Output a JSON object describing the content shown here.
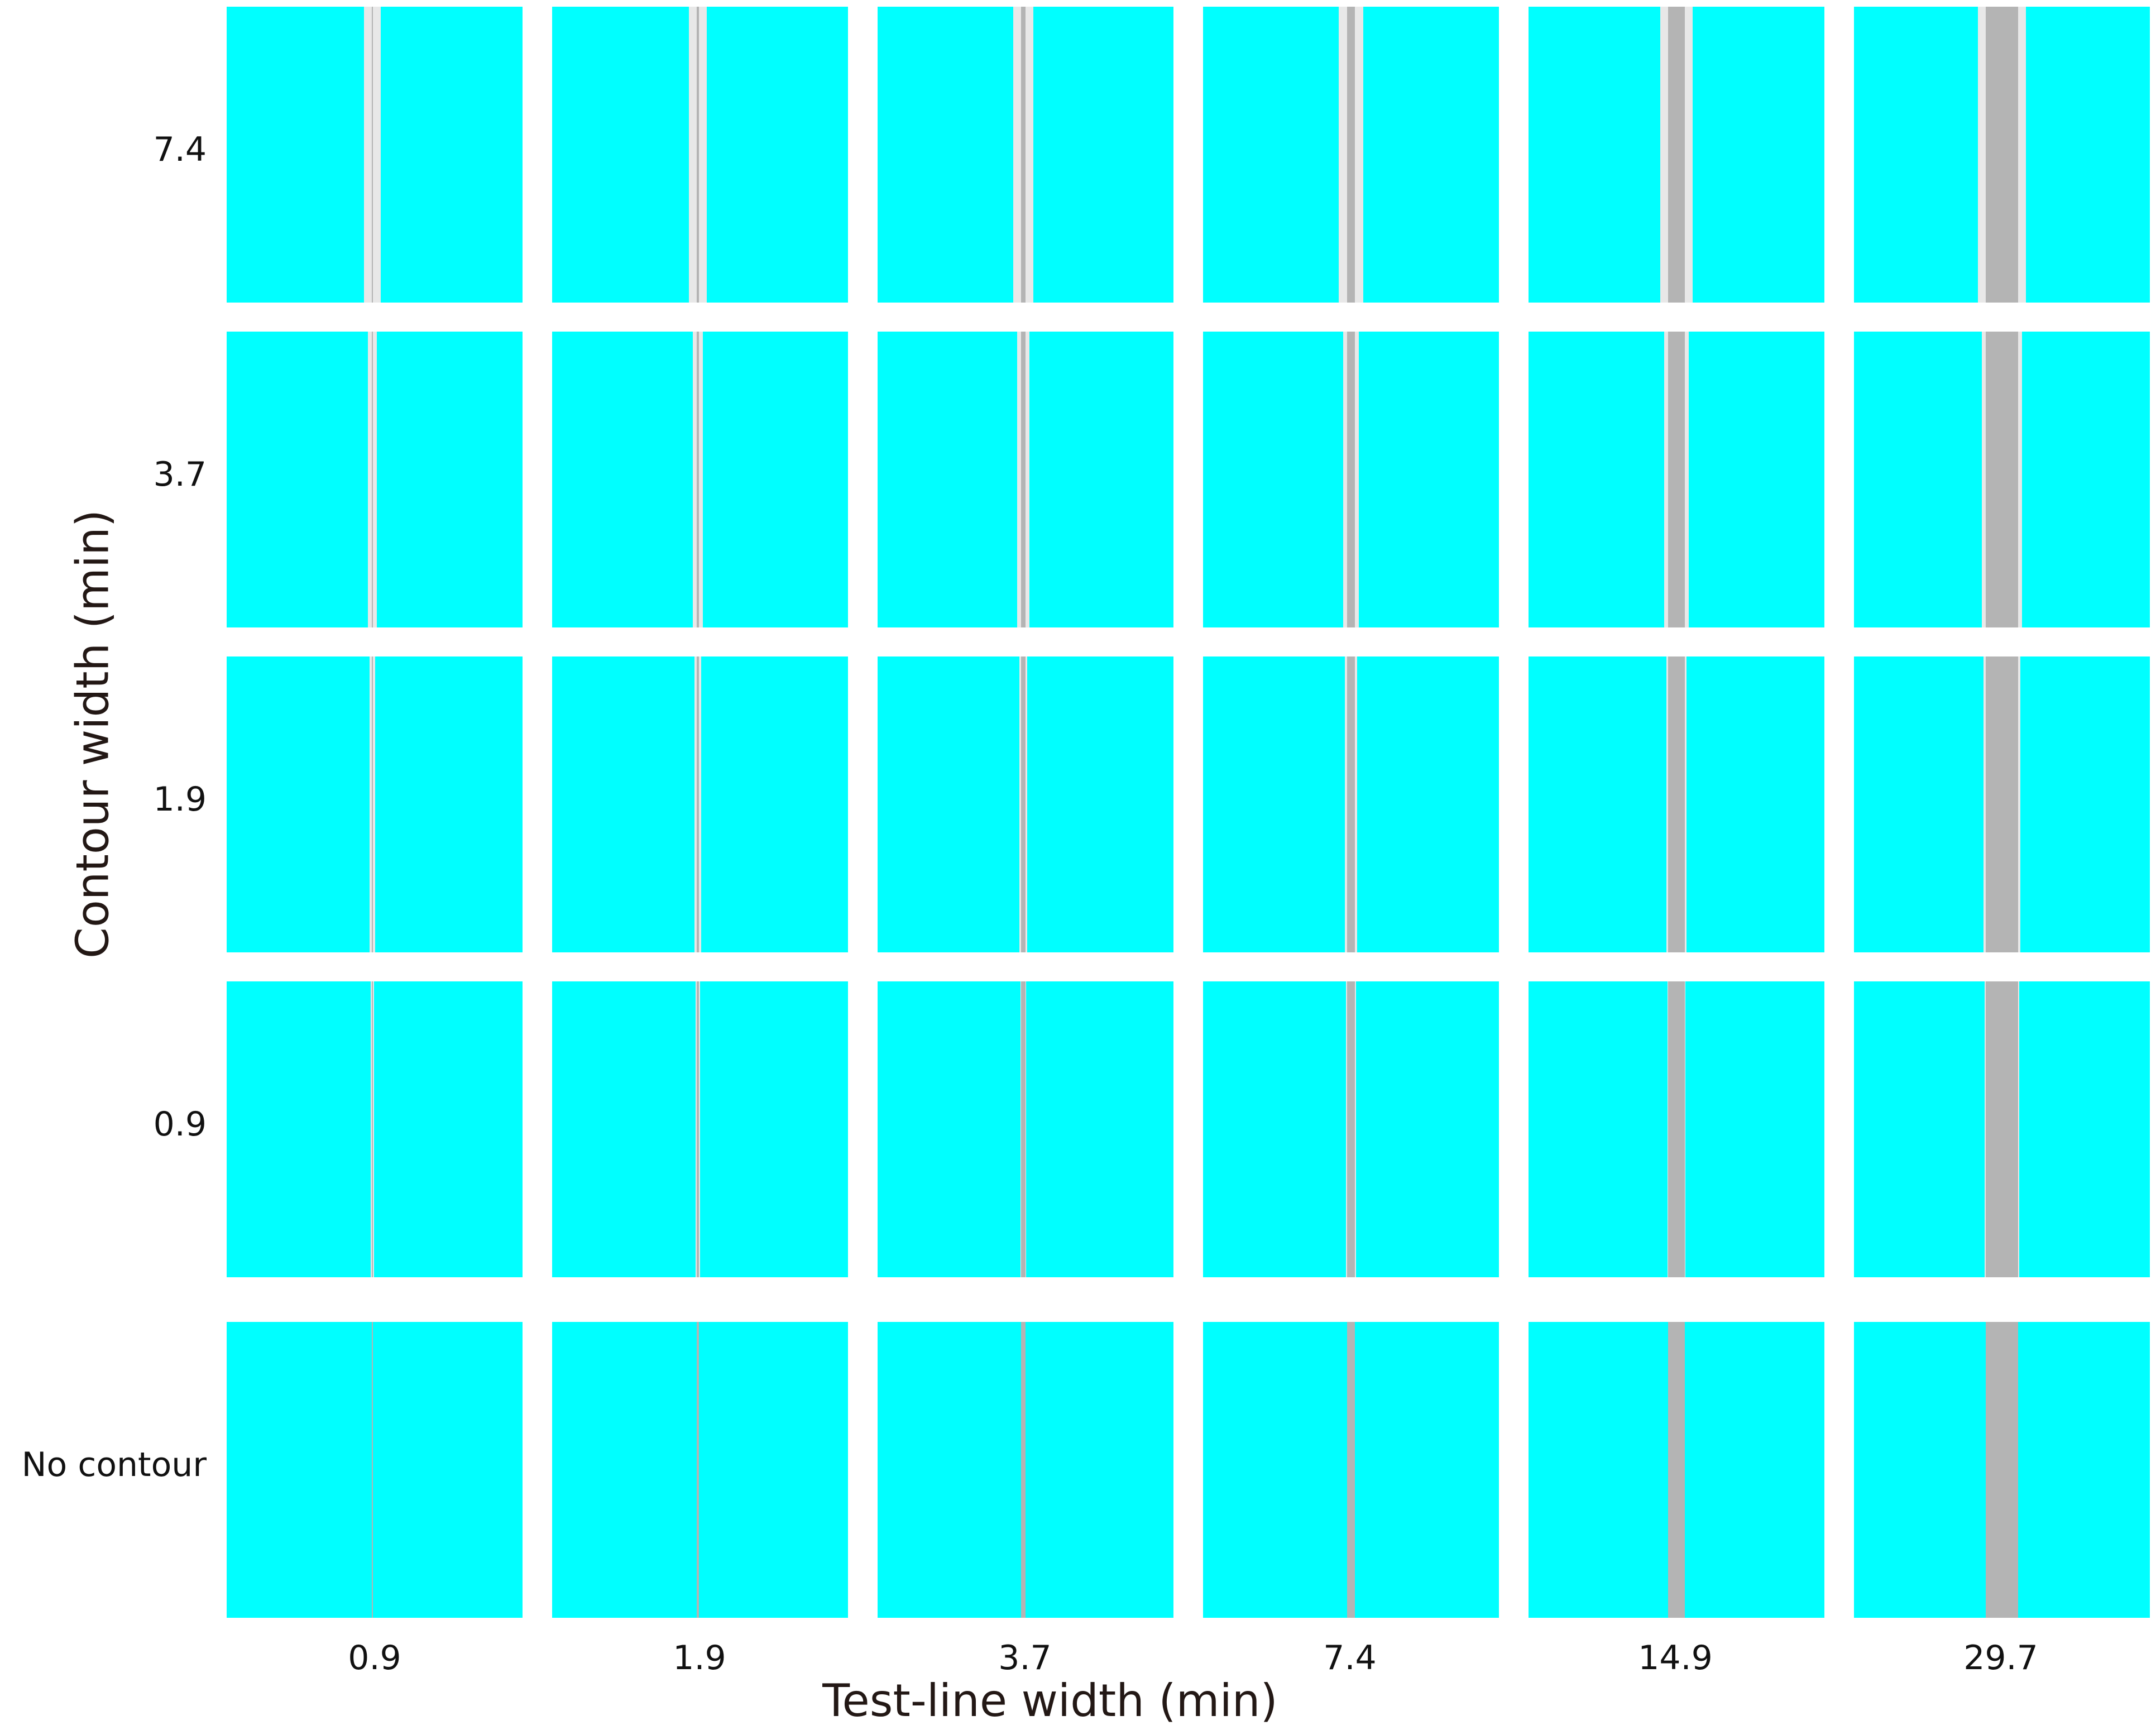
{
  "figure": {
    "x_title": "Test-line width (min)",
    "y_title": "Contour width (min)",
    "columns": [
      {
        "label": "0.9",
        "test_line_width_min": 0.9
      },
      {
        "label": "1.9",
        "test_line_width_min": 1.9
      },
      {
        "label": "3.7",
        "test_line_width_min": 3.7
      },
      {
        "label": "7.4",
        "test_line_width_min": 7.4
      },
      {
        "label": "14.9",
        "test_line_width_min": 14.9
      },
      {
        "label": "29.7",
        "test_line_width_min": 29.7
      }
    ],
    "rows": [
      {
        "label": "7.4",
        "contour_width_min": 7.4
      },
      {
        "label": "3.7",
        "contour_width_min": 3.7
      },
      {
        "label": "1.9",
        "contour_width_min": 1.9
      },
      {
        "label": "0.9",
        "contour_width_min": 0.9
      },
      {
        "label": "No contour",
        "contour_width_min": 0
      }
    ],
    "colors": {
      "background_field": "#00ffff",
      "test_line": "#b4b4b4",
      "contour": "#e8e8e8",
      "page": "#ffffff"
    }
  }
}
